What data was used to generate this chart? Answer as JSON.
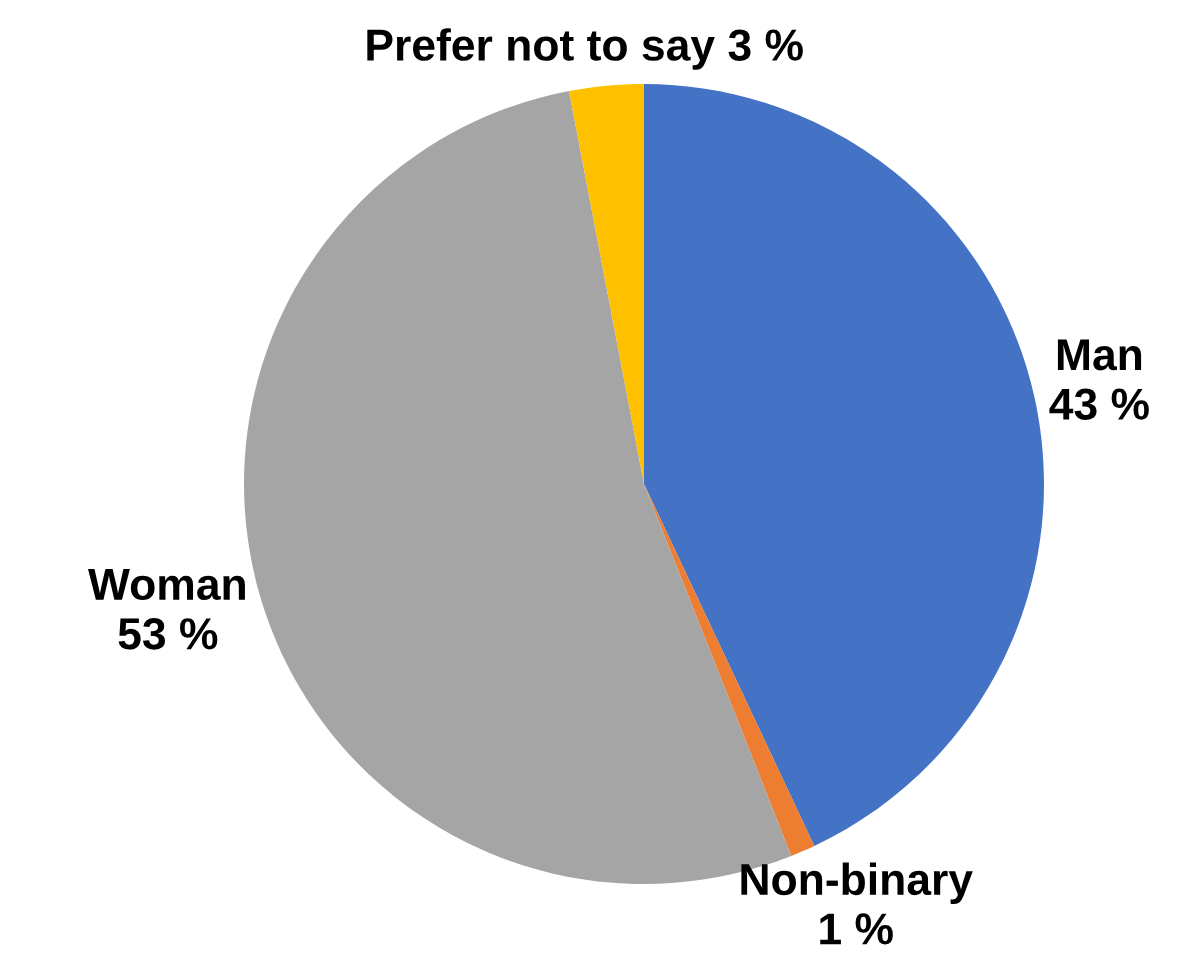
{
  "chart_data": {
    "type": "pie",
    "categories": [
      "Man",
      "Non-binary",
      "Woman",
      "Prefer not to say"
    ],
    "values": [
      43,
      1,
      53,
      3
    ],
    "colors": [
      "#4472c4",
      "#ed7d31",
      "#a5a5a5",
      "#ffc000"
    ],
    "value_labels": [
      "43 %",
      "1 %",
      "53 %",
      "3 %"
    ]
  }
}
